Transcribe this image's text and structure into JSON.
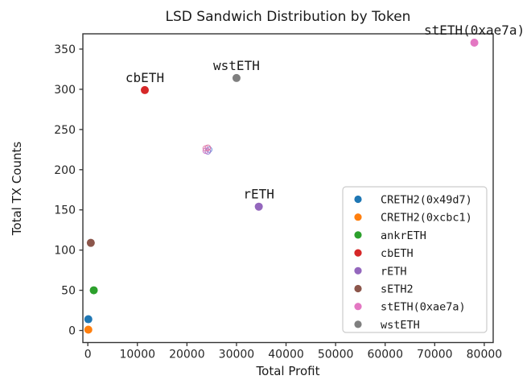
{
  "chart_data": {
    "type": "scatter",
    "title": "LSD Sandwich Distribution by Token",
    "xlabel": "Total Profit",
    "ylabel": "Total TX Counts",
    "xlim": [
      -1000,
      81800
    ],
    "ylim": [
      -15,
      369
    ],
    "xticks": [
      0,
      10000,
      20000,
      30000,
      40000,
      50000,
      60000,
      70000,
      80000
    ],
    "yticks": [
      0,
      50,
      100,
      150,
      200,
      250,
      300,
      350
    ],
    "grid": false,
    "legend": {
      "position": "lower right",
      "border_color": "#cccccc",
      "background_color": "#ffffff"
    },
    "series": [
      {
        "name": "CRETH2(0x49d7)",
        "color": "#1f77b4",
        "x": 100,
        "y": 14,
        "annotated": false
      },
      {
        "name": "CRETH2(0xcbc1)",
        "color": "#ff7f0e",
        "x": 100,
        "y": 1,
        "annotated": false
      },
      {
        "name": "ankrETH",
        "color": "#2ca02c",
        "x": 1200,
        "y": 50,
        "annotated": false
      },
      {
        "name": "cbETH",
        "color": "#d62728",
        "x": 11500,
        "y": 299,
        "annotated": true
      },
      {
        "name": "rETH",
        "color": "#9467bd",
        "x": 34500,
        "y": 154,
        "annotated": true
      },
      {
        "name": "sETH2",
        "color": "#8c564b",
        "x": 600,
        "y": 109,
        "annotated": false
      },
      {
        "name": "stETH(0xae7a)",
        "color": "#e377c2",
        "x": 78000,
        "y": 358,
        "annotated": true
      },
      {
        "name": "wstETH",
        "color": "#7f7f7f",
        "x": 30000,
        "y": 314,
        "annotated": true
      }
    ],
    "watermark_swirl": {
      "x": 24100,
      "y": 225,
      "colors": [
        "#5b7fd4",
        "#8a6bc9",
        "#c76bc2",
        "#e077a8",
        "#d6609a"
      ]
    },
    "colors": {
      "spine": "#333333",
      "tick": "#333333",
      "text": "#1a1a1a"
    }
  }
}
